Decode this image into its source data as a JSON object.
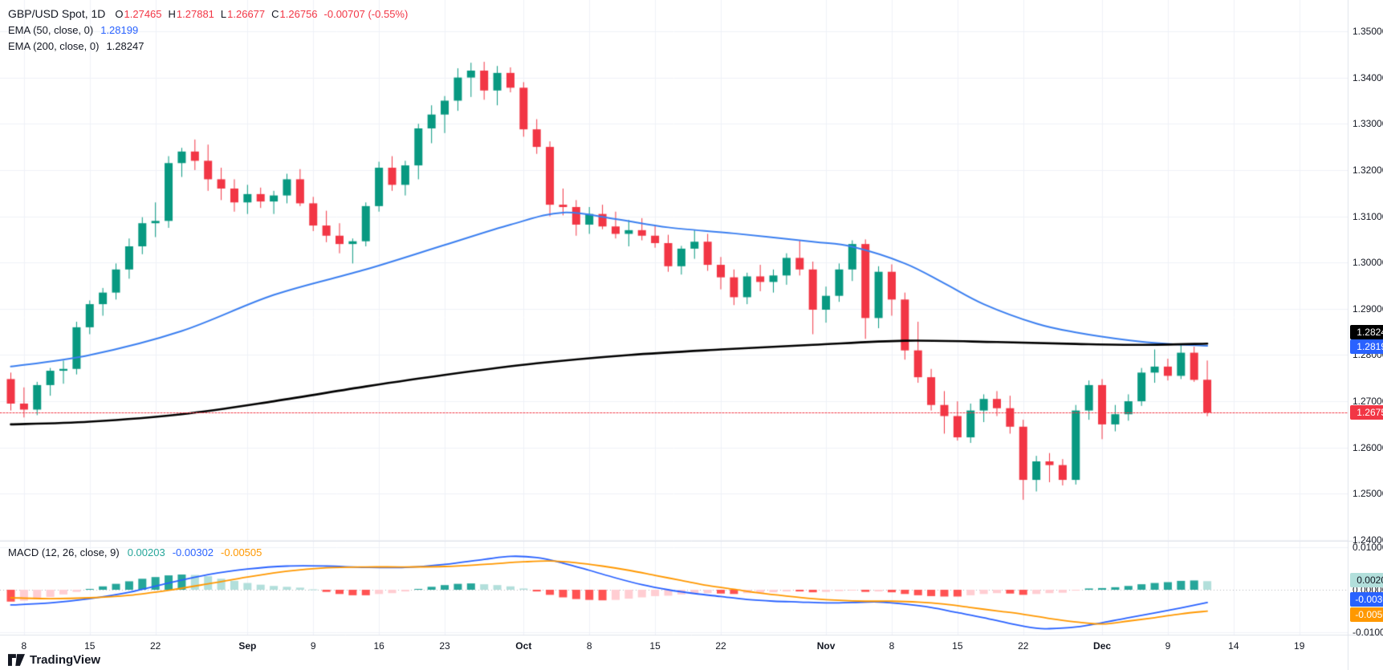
{
  "header": {
    "symbol": "GBP/USD Spot, 1D",
    "open_label": "O",
    "open": "1.27465",
    "high_label": "H",
    "high": "1.27881",
    "low_label": "L",
    "low": "1.26677",
    "close_label": "C",
    "close": "1.26756",
    "change": "-0.00707 (-0.55%)",
    "ema50_label": "EMA (50, close, 0)",
    "ema50_value": "1.28199",
    "ema200_label": "EMA (200, close, 0)",
    "ema200_value": "1.28247"
  },
  "macd": {
    "label": "MACD (12, 26, close, 9)",
    "hist_value": "0.00203",
    "macd_value": "-0.00302",
    "signal_value": "-0.00505"
  },
  "badges": {
    "ema200": "1.28247",
    "ema50": "1.28199",
    "last_price": "1.26756",
    "macd_hist": "0.00203",
    "macd_line": "-0.00302",
    "macd_signal": "-0.00505"
  },
  "axes": {
    "price_ticks": [
      "1.35000",
      "1.34000",
      "1.33000",
      "1.32000",
      "1.31000",
      "1.30000",
      "1.29000",
      "1.28000",
      "1.27000",
      "1.26000",
      "1.25000",
      "1.24000"
    ],
    "macd_ticks": [
      "0.01000",
      "0.00000",
      "-0.01000"
    ],
    "time_labels": [
      {
        "label": "8",
        "index": 1
      },
      {
        "label": "15",
        "index": 6
      },
      {
        "label": "22",
        "index": 11
      },
      {
        "label": "Sep",
        "index": 18,
        "month": true
      },
      {
        "label": "9",
        "index": 23
      },
      {
        "label": "16",
        "index": 28
      },
      {
        "label": "23",
        "index": 33
      },
      {
        "label": "Oct",
        "index": 39,
        "month": true
      },
      {
        "label": "8",
        "index": 44
      },
      {
        "label": "15",
        "index": 49
      },
      {
        "label": "22",
        "index": 54
      },
      {
        "label": "Nov",
        "index": 62,
        "month": true
      },
      {
        "label": "8",
        "index": 67
      },
      {
        "label": "15",
        "index": 72
      },
      {
        "label": "22",
        "index": 77
      },
      {
        "label": "Dec",
        "index": 83,
        "month": true
      },
      {
        "label": "9",
        "index": 88
      },
      {
        "label": "14",
        "index": 93
      },
      {
        "label": "19",
        "index": 98
      }
    ]
  },
  "watermark": {
    "text": "TradingView"
  },
  "colors": {
    "up": "#089981",
    "down": "#f23645",
    "ema50": "#3b7ff0",
    "ema200": "#000000",
    "macd_line": "#2962ff",
    "signal_line": "#ff9800",
    "hist_up": "#26a69a",
    "hist_up_weak": "#b2dfdb",
    "hist_down": "#ff5252",
    "hist_down_weak": "#ffcdd2",
    "axis_text": "#131722",
    "grid": "#f0f2f8",
    "separator": "#e0e3eb",
    "last_price_line": "#f23645"
  },
  "chart_data": {
    "type": "candlestick",
    "symbol": "GBP/USD Spot",
    "timeframe": "1D",
    "price_axis_range": [
      1.24,
      1.35
    ],
    "last_price": 1.26756,
    "candles": [
      [
        "Aug 7",
        1.2748,
        1.2762,
        1.268,
        1.2695
      ],
      [
        "Aug 8",
        1.2695,
        1.273,
        1.2665,
        1.2682
      ],
      [
        "Aug 9",
        1.2682,
        1.2742,
        1.267,
        1.2735
      ],
      [
        "Aug 12",
        1.2735,
        1.2772,
        1.2712,
        1.2766
      ],
      [
        "Aug 13",
        1.2766,
        1.2788,
        1.2738,
        1.277
      ],
      [
        "Aug 14",
        1.277,
        1.2872,
        1.2758,
        1.286
      ],
      [
        "Aug 15",
        1.286,
        1.2918,
        1.2845,
        1.291
      ],
      [
        "Aug 16",
        1.291,
        1.2945,
        1.2885,
        1.2935
      ],
      [
        "Aug 19",
        1.2935,
        1.2998,
        1.292,
        1.2985
      ],
      [
        "Aug 20",
        1.2985,
        1.3052,
        1.2965,
        1.3035
      ],
      [
        "Aug 21",
        1.3035,
        1.3098,
        1.3018,
        1.3085
      ],
      [
        "Aug 22",
        1.3085,
        1.313,
        1.3055,
        1.309
      ],
      [
        "Aug 23",
        1.309,
        1.323,
        1.3075,
        1.3215
      ],
      [
        "Aug 26",
        1.3215,
        1.3248,
        1.3185,
        1.324
      ],
      [
        "Aug 27",
        1.324,
        1.3266,
        1.32,
        1.322
      ],
      [
        "Aug 28",
        1.322,
        1.3255,
        1.3155,
        1.318
      ],
      [
        "Aug 29",
        1.318,
        1.3205,
        1.3135,
        1.316
      ],
      [
        "Aug 30",
        1.316,
        1.318,
        1.311,
        1.313
      ],
      [
        "Sep 2",
        1.313,
        1.3168,
        1.3105,
        1.3148
      ],
      [
        "Sep 3",
        1.3148,
        1.3162,
        1.3118,
        1.3132
      ],
      [
        "Sep 4",
        1.3132,
        1.3155,
        1.3105,
        1.3145
      ],
      [
        "Sep 5",
        1.3145,
        1.3192,
        1.3128,
        1.318
      ],
      [
        "Sep 6",
        1.318,
        1.3202,
        1.3122,
        1.3128
      ],
      [
        "Sep 9",
        1.3128,
        1.3142,
        1.3068,
        1.308
      ],
      [
        "Sep 10",
        1.308,
        1.3112,
        1.3044,
        1.3058
      ],
      [
        "Sep 11",
        1.3058,
        1.3085,
        1.302,
        1.304
      ],
      [
        "Sep 12",
        1.304,
        1.3052,
        1.2998,
        1.3046
      ],
      [
        "Sep 13",
        1.3046,
        1.313,
        1.3035,
        1.3122
      ],
      [
        "Sep 16",
        1.3122,
        1.3218,
        1.311,
        1.3205
      ],
      [
        "Sep 17",
        1.3205,
        1.323,
        1.3155,
        1.3168
      ],
      [
        "Sep 18",
        1.3168,
        1.322,
        1.3145,
        1.321
      ],
      [
        "Sep 19",
        1.321,
        1.33,
        1.318,
        1.329
      ],
      [
        "Sep 20",
        1.329,
        1.334,
        1.3258,
        1.332
      ],
      [
        "Sep 23",
        1.332,
        1.336,
        1.328,
        1.335
      ],
      [
        "Sep 24",
        1.335,
        1.342,
        1.3328,
        1.34
      ],
      [
        "Sep 25",
        1.34,
        1.3432,
        1.3358,
        1.3415
      ],
      [
        "Sep 26",
        1.3415,
        1.3434,
        1.3352,
        1.3372
      ],
      [
        "Sep 27",
        1.3372,
        1.3425,
        1.334,
        1.341
      ],
      [
        "Sep 30",
        1.341,
        1.3422,
        1.3368,
        1.3378
      ],
      [
        "Oct 1",
        1.3378,
        1.339,
        1.3272,
        1.3288
      ],
      [
        "Oct 2",
        1.3288,
        1.331,
        1.3235,
        1.325
      ],
      [
        "Oct 3",
        1.325,
        1.3262,
        1.31,
        1.3125
      ],
      [
        "Oct 4",
        1.3125,
        1.316,
        1.3102,
        1.312
      ],
      [
        "Oct 7",
        1.312,
        1.3135,
        1.3058,
        1.3082
      ],
      [
        "Oct 8",
        1.3082,
        1.312,
        1.3062,
        1.3105
      ],
      [
        "Oct 9",
        1.3105,
        1.3125,
        1.3072,
        1.3078
      ],
      [
        "Oct 10",
        1.3078,
        1.311,
        1.3052,
        1.3062
      ],
      [
        "Oct 11",
        1.3062,
        1.3092,
        1.3035,
        1.307
      ],
      [
        "Oct 14",
        1.307,
        1.3096,
        1.3048,
        1.3058
      ],
      [
        "Oct 15",
        1.3058,
        1.308,
        1.3032,
        1.3042
      ],
      [
        "Oct 16",
        1.3042,
        1.306,
        1.298,
        1.2992
      ],
      [
        "Oct 17",
        1.2992,
        1.3036,
        1.2974,
        1.303
      ],
      [
        "Oct 18",
        1.303,
        1.307,
        1.3008,
        1.3045
      ],
      [
        "Oct 21",
        1.3045,
        1.3062,
        1.2982,
        1.2995
      ],
      [
        "Oct 22",
        1.2995,
        1.3012,
        1.2942,
        1.2968
      ],
      [
        "Oct 23",
        1.2968,
        1.2985,
        1.2908,
        1.2925
      ],
      [
        "Oct 24",
        1.2925,
        1.2978,
        1.291,
        1.297
      ],
      [
        "Oct 25",
        1.297,
        1.2995,
        1.2938,
        1.2958
      ],
      [
        "Oct 28",
        1.2958,
        1.2985,
        1.2935,
        1.2972
      ],
      [
        "Oct 29",
        1.2972,
        1.302,
        1.2952,
        1.301
      ],
      [
        "Oct 30",
        1.301,
        1.3048,
        1.2972,
        1.2985
      ],
      [
        "Oct 31",
        1.2985,
        1.3002,
        1.2845,
        1.2898
      ],
      [
        "Nov 1",
        1.2898,
        1.2948,
        1.287,
        1.2928
      ],
      [
        "Nov 4",
        1.2928,
        1.2998,
        1.2915,
        1.2985
      ],
      [
        "Nov 5",
        1.2985,
        1.3048,
        1.296,
        1.304
      ],
      [
        "Nov 6",
        1.304,
        1.305,
        1.2835,
        1.288
      ],
      [
        "Nov 7",
        1.288,
        1.2992,
        1.2858,
        1.298
      ],
      [
        "Nov 8",
        1.298,
        1.2996,
        1.2885,
        1.292
      ],
      [
        "Nov 11",
        1.292,
        1.2935,
        1.279,
        1.281
      ],
      [
        "Nov 12",
        1.281,
        1.2872,
        1.274,
        1.2752
      ],
      [
        "Nov 13",
        1.2752,
        1.277,
        1.268,
        1.2692
      ],
      [
        "Nov 14",
        1.2692,
        1.2722,
        1.263,
        1.2668
      ],
      [
        "Nov 15",
        1.2668,
        1.27,
        1.2615,
        1.2622
      ],
      [
        "Nov 18",
        1.2622,
        1.2695,
        1.261,
        1.268
      ],
      [
        "Nov 19",
        1.268,
        1.2715,
        1.2655,
        1.2705
      ],
      [
        "Nov 20",
        1.2705,
        1.2722,
        1.2668,
        1.2685
      ],
      [
        "Nov 21",
        1.2685,
        1.2712,
        1.263,
        1.2645
      ],
      [
        "Nov 22",
        1.2645,
        1.266,
        1.2487,
        1.253
      ],
      [
        "Nov 25",
        1.253,
        1.2582,
        1.2505,
        1.257
      ],
      [
        "Nov 26",
        1.257,
        1.2588,
        1.2525,
        1.2562
      ],
      [
        "Nov 27",
        1.2562,
        1.2575,
        1.2518,
        1.253
      ],
      [
        "Nov 28",
        1.253,
        1.2692,
        1.252,
        1.268
      ],
      [
        "Nov 29",
        1.268,
        1.2745,
        1.266,
        1.2735
      ],
      [
        "Dec 2",
        1.2735,
        1.2748,
        1.2618,
        1.265
      ],
      [
        "Dec 3",
        1.265,
        1.2692,
        1.2635,
        1.2672
      ],
      [
        "Dec 4",
        1.2672,
        1.2715,
        1.2658,
        1.27
      ],
      [
        "Dec 5",
        1.27,
        1.2772,
        1.269,
        1.2762
      ],
      [
        "Dec 6",
        1.2762,
        1.2812,
        1.274,
        1.2775
      ],
      [
        "Dec 9",
        1.2775,
        1.2792,
        1.2745,
        1.2755
      ],
      [
        "Dec 10",
        1.2755,
        1.2822,
        1.2748,
        1.2805
      ],
      [
        "Dec 11",
        1.2805,
        1.2818,
        1.2742,
        1.27463
      ],
      [
        "Dec 12",
        1.27465,
        1.27881,
        1.26677,
        1.26756
      ]
    ],
    "overlays": {
      "ema50": [
        [
          0,
          1.2775
        ],
        [
          6,
          1.28
        ],
        [
          13,
          1.2852
        ],
        [
          20,
          1.293
        ],
        [
          27,
          1.2985
        ],
        [
          33,
          1.3038
        ],
        [
          38,
          1.3082
        ],
        [
          42,
          1.3108
        ],
        [
          46,
          1.3094
        ],
        [
          50,
          1.3076
        ],
        [
          55,
          1.3063
        ],
        [
          61,
          1.3045
        ],
        [
          64,
          1.3034
        ],
        [
          68,
          1.2998
        ],
        [
          71,
          1.2955
        ],
        [
          74,
          1.291
        ],
        [
          78,
          1.2868
        ],
        [
          81,
          1.2849
        ],
        [
          85,
          1.2832
        ],
        [
          88,
          1.2824
        ],
        [
          91,
          1.28199
        ]
      ],
      "ema200": [
        [
          0,
          1.265
        ],
        [
          6,
          1.2656
        ],
        [
          13,
          1.2672
        ],
        [
          20,
          1.27
        ],
        [
          27,
          1.2732
        ],
        [
          33,
          1.2757
        ],
        [
          40,
          1.2782
        ],
        [
          47,
          1.28
        ],
        [
          54,
          1.2812
        ],
        [
          61,
          1.2822
        ],
        [
          68,
          1.2831
        ],
        [
          75,
          1.2828
        ],
        [
          81,
          1.2824
        ],
        [
          86,
          1.2822
        ],
        [
          91,
          1.28247
        ]
      ]
    },
    "macd": {
      "axis_range": [
        -0.01,
        0.01
      ],
      "histogram": [
        -0.0028,
        -0.0026,
        -0.0022,
        -0.0017,
        -0.0011,
        -0.0005,
        0.0002,
        0.0008,
        0.0014,
        0.002,
        0.0026,
        0.003,
        0.0034,
        0.0036,
        0.0035,
        0.0032,
        0.0026,
        0.0021,
        0.0016,
        0.0012,
        0.0009,
        0.0007,
        0.0005,
        0.0001,
        -0.0005,
        -0.001,
        -0.0013,
        -0.0013,
        -0.001,
        -0.0008,
        -0.0004,
        0.0002,
        0.0007,
        0.0011,
        0.0014,
        0.0015,
        0.0013,
        0.0011,
        0.0008,
        0.0003,
        -0.0004,
        -0.0012,
        -0.0018,
        -0.0022,
        -0.0024,
        -0.0025,
        -0.0024,
        -0.0021,
        -0.0018,
        -0.0015,
        -0.0014,
        -0.0011,
        -0.0009,
        -0.0008,
        -0.0009,
        -0.001,
        -0.0008,
        -0.0007,
        -0.0006,
        -0.0004,
        -0.0004,
        -0.0006,
        -0.0005,
        -0.0003,
        -0.0001,
        -0.0005,
        -0.0004,
        -0.0006,
        -0.001,
        -0.0013,
        -0.0015,
        -0.0016,
        -0.0016,
        -0.0013,
        -0.001,
        -0.0008,
        -0.0009,
        -0.0012,
        -0.001,
        -0.0008,
        -0.0007,
        -0.0002,
        0.0003,
        0.0004,
        0.0006,
        0.0009,
        0.0013,
        0.0016,
        0.0018,
        0.0021,
        0.0022,
        0.00203
      ],
      "macd_line": [
        [
          0,
          -0.0036
        ],
        [
          3,
          -0.0031
        ],
        [
          6,
          -0.0021
        ],
        [
          9,
          -0.0006
        ],
        [
          12,
          0.0016
        ],
        [
          15,
          0.0036
        ],
        [
          18,
          0.0049
        ],
        [
          21,
          0.0056
        ],
        [
          24,
          0.0056
        ],
        [
          27,
          0.0053
        ],
        [
          30,
          0.0053
        ],
        [
          33,
          0.006
        ],
        [
          36,
          0.0072
        ],
        [
          38,
          0.0079
        ],
        [
          40,
          0.0076
        ],
        [
          42,
          0.0063
        ],
        [
          44,
          0.0046
        ],
        [
          46,
          0.0028
        ],
        [
          48,
          0.0012
        ],
        [
          50,
          0.0
        ],
        [
          52,
          -0.0009
        ],
        [
          54,
          -0.0016
        ],
        [
          56,
          -0.0023
        ],
        [
          58,
          -0.0027
        ],
        [
          60,
          -0.0029
        ],
        [
          62,
          -0.0031
        ],
        [
          64,
          -0.003
        ],
        [
          66,
          -0.0029
        ],
        [
          68,
          -0.0034
        ],
        [
          70,
          -0.0042
        ],
        [
          72,
          -0.0054
        ],
        [
          74,
          -0.0066
        ],
        [
          76,
          -0.008
        ],
        [
          78,
          -0.0091
        ],
        [
          79,
          -0.0092
        ],
        [
          81,
          -0.0088
        ],
        [
          83,
          -0.0078
        ],
        [
          85,
          -0.0066
        ],
        [
          87,
          -0.0055
        ],
        [
          89,
          -0.0043
        ],
        [
          91,
          -0.00302
        ]
      ],
      "signal_line": [
        [
          0,
          -0.0019
        ],
        [
          3,
          -0.0021
        ],
        [
          6,
          -0.0019
        ],
        [
          9,
          -0.0013
        ],
        [
          12,
          -0.0001
        ],
        [
          15,
          0.0014
        ],
        [
          18,
          0.003
        ],
        [
          21,
          0.0044
        ],
        [
          24,
          0.0052
        ],
        [
          27,
          0.0054
        ],
        [
          30,
          0.0054
        ],
        [
          33,
          0.0055
        ],
        [
          36,
          0.006
        ],
        [
          39,
          0.0066
        ],
        [
          41,
          0.0068
        ],
        [
          43,
          0.0064
        ],
        [
          45,
          0.0056
        ],
        [
          47,
          0.0046
        ],
        [
          49,
          0.0034
        ],
        [
          51,
          0.0022
        ],
        [
          53,
          0.001
        ],
        [
          55,
          0.0001
        ],
        [
          57,
          -0.0008
        ],
        [
          59,
          -0.0015
        ],
        [
          61,
          -0.0021
        ],
        [
          63,
          -0.0025
        ],
        [
          65,
          -0.0027
        ],
        [
          67,
          -0.0027
        ],
        [
          69,
          -0.0029
        ],
        [
          71,
          -0.0034
        ],
        [
          73,
          -0.0042
        ],
        [
          75,
          -0.005
        ],
        [
          77,
          -0.0058
        ],
        [
          79,
          -0.0068
        ],
        [
          81,
          -0.0076
        ],
        [
          83,
          -0.0081
        ],
        [
          85,
          -0.0074
        ],
        [
          87,
          -0.0066
        ],
        [
          89,
          -0.0057
        ],
        [
          91,
          -0.00505
        ]
      ]
    }
  }
}
